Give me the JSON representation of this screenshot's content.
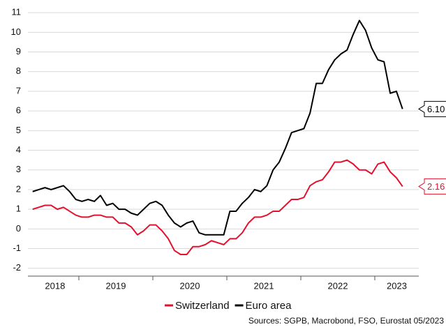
{
  "chart_data": {
    "type": "line",
    "x": [
      "2018-05",
      "2018-06",
      "2018-07",
      "2018-08",
      "2018-09",
      "2018-10",
      "2018-11",
      "2018-12",
      "2019-01",
      "2019-02",
      "2019-03",
      "2019-04",
      "2019-05",
      "2019-06",
      "2019-07",
      "2019-08",
      "2019-09",
      "2019-10",
      "2019-11",
      "2019-12",
      "2020-01",
      "2020-02",
      "2020-03",
      "2020-04",
      "2020-05",
      "2020-06",
      "2020-07",
      "2020-08",
      "2020-09",
      "2020-10",
      "2020-11",
      "2020-12",
      "2021-01",
      "2021-02",
      "2021-03",
      "2021-04",
      "2021-05",
      "2021-06",
      "2021-07",
      "2021-08",
      "2021-09",
      "2021-10",
      "2021-11",
      "2021-12",
      "2022-01",
      "2022-02",
      "2022-03",
      "2022-04",
      "2022-05",
      "2022-06",
      "2022-07",
      "2022-08",
      "2022-09",
      "2022-10",
      "2022-11",
      "2022-12",
      "2023-01",
      "2023-02",
      "2023-03",
      "2023-04",
      "2023-05"
    ],
    "xlabels": [
      "2018",
      "2019",
      "2020",
      "2021",
      "2022",
      "2023"
    ],
    "series": [
      {
        "name": "Switzerland",
        "color": "#e2112e",
        "end_label": "2.16",
        "values": [
          1.0,
          1.1,
          1.2,
          1.2,
          1.0,
          1.1,
          0.9,
          0.7,
          0.6,
          0.6,
          0.7,
          0.7,
          0.6,
          0.6,
          0.3,
          0.3,
          0.1,
          -0.3,
          -0.1,
          0.2,
          0.2,
          -0.1,
          -0.5,
          -1.1,
          -1.3,
          -1.3,
          -0.9,
          -0.9,
          -0.8,
          -0.6,
          -0.7,
          -0.8,
          -0.5,
          -0.5,
          -0.2,
          0.3,
          0.6,
          0.6,
          0.7,
          0.9,
          0.9,
          1.2,
          1.5,
          1.5,
          1.6,
          2.2,
          2.4,
          2.5,
          2.9,
          3.4,
          3.4,
          3.5,
          3.3,
          3.0,
          3.0,
          2.8,
          3.3,
          3.4,
          2.9,
          2.6,
          2.16
        ]
      },
      {
        "name": "Euro area",
        "color": "#000000",
        "end_label": "6.10",
        "values": [
          1.9,
          2.0,
          2.1,
          2.0,
          2.1,
          2.2,
          1.9,
          1.5,
          1.4,
          1.5,
          1.4,
          1.7,
          1.2,
          1.3,
          1.0,
          1.0,
          0.8,
          0.7,
          1.0,
          1.3,
          1.4,
          1.2,
          0.7,
          0.3,
          0.1,
          0.3,
          0.4,
          -0.2,
          -0.3,
          -0.3,
          -0.3,
          -0.3,
          0.9,
          0.9,
          1.3,
          1.6,
          2.0,
          1.9,
          2.2,
          3.0,
          3.4,
          4.1,
          4.9,
          5.0,
          5.1,
          5.9,
          7.4,
          7.4,
          8.1,
          8.6,
          8.9,
          9.1,
          9.9,
          10.6,
          10.1,
          9.2,
          8.6,
          8.5,
          6.9,
          7.0,
          6.1
        ]
      }
    ],
    "ylim": [
      -2.4,
      11.2
    ],
    "yticks": [
      -2,
      -1,
      0,
      1,
      2,
      3,
      4,
      5,
      6,
      7,
      8,
      9,
      10,
      11
    ],
    "grid": true,
    "legend": "bottom",
    "source": "Sources: SGPB, Macrobond, FSO, Eurostat 05/2023"
  }
}
